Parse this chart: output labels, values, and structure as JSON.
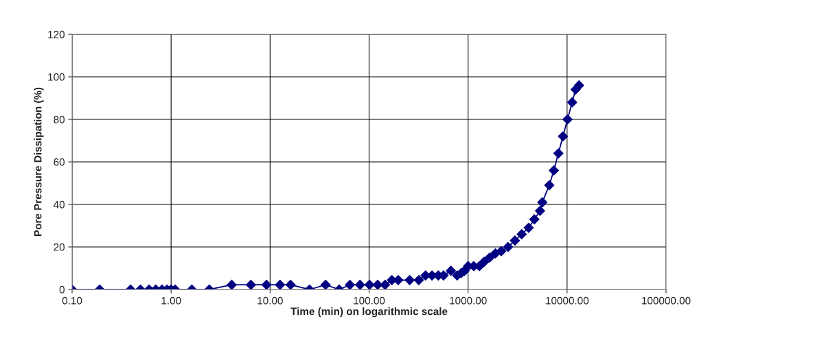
{
  "chart_data": {
    "type": "line",
    "xlabel": "Time (min) on logarithmic scale",
    "ylabel": "Pore Pressure Dissipation (%)",
    "log": "x",
    "grid": true,
    "marker": "diamond",
    "line_style": "solid",
    "xlim": [
      0.1,
      100000
    ],
    "ylim": [
      0,
      120
    ],
    "xticks": [
      {
        "value": 0.1,
        "label": "0.10"
      },
      {
        "value": 1,
        "label": "1.00"
      },
      {
        "value": 10,
        "label": "10.00"
      },
      {
        "value": 100,
        "label": "100.00"
      },
      {
        "value": 1000,
        "label": "1000.00"
      },
      {
        "value": 10000,
        "label": "10000.00"
      },
      {
        "value": 100000,
        "label": "100000.00"
      }
    ],
    "yticks": [
      0,
      20,
      40,
      60,
      80,
      100,
      120
    ],
    "series": [
      {
        "color": "#000080",
        "x": [
          0.1,
          0.19,
          0.39,
          0.49,
          0.6,
          0.7,
          0.81,
          0.91,
          1.0,
          1.1,
          1.62,
          2.43,
          4.1,
          6.4,
          9.2,
          12.6,
          16.1,
          25,
          36.4,
          49.9,
          64,
          81,
          101,
          122,
          145,
          170,
          197,
          257,
          318,
          372,
          432,
          500,
          565,
          670,
          776,
          851,
          922,
          1000,
          1140,
          1300,
          1450,
          1650,
          1890,
          2160,
          2530,
          2970,
          3480,
          4090,
          4670,
          5330,
          5620,
          6610,
          7350,
          8170,
          9080,
          10100,
          11250,
          12190,
          13200
        ],
        "values": [
          0,
          0,
          0,
          0,
          0,
          0,
          0,
          0,
          0,
          0,
          0,
          0,
          2.2,
          2.2,
          2.2,
          2.2,
          2.2,
          0,
          2.2,
          0,
          2.2,
          2.2,
          2.2,
          2.2,
          2.2,
          4.4,
          4.4,
          4.4,
          4.4,
          6.6,
          6.6,
          6.6,
          6.6,
          8.8,
          6.6,
          7.7,
          8.8,
          11,
          11,
          11,
          13,
          15,
          17,
          18,
          20,
          23,
          26,
          29,
          33,
          37,
          41,
          49,
          56,
          64,
          72,
          80,
          88,
          94,
          96
        ]
      }
    ]
  }
}
